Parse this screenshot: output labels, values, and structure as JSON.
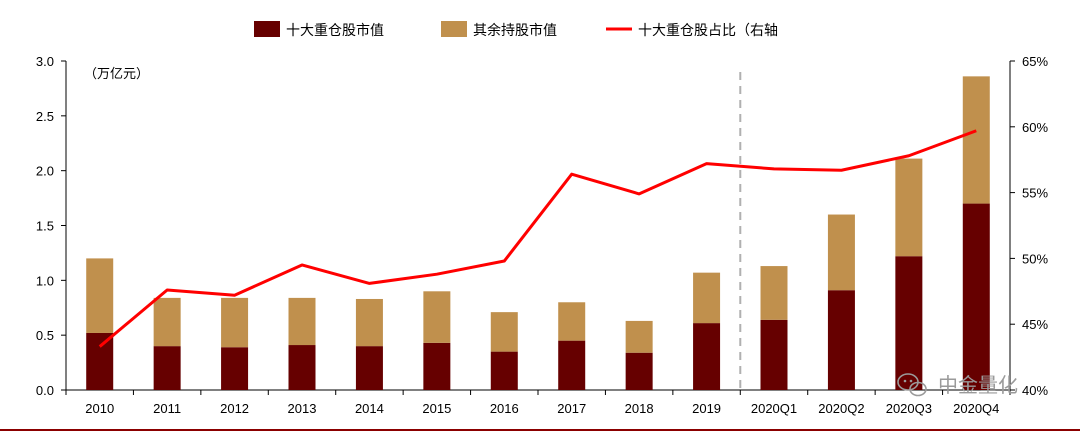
{
  "chart_data": {
    "type": "bar",
    "stacked": true,
    "categories": [
      "2010",
      "2011",
      "2012",
      "2013",
      "2014",
      "2015",
      "2016",
      "2017",
      "2018",
      "2019",
      "2020Q1",
      "2020Q2",
      "2020Q3",
      "2020Q4"
    ],
    "series": [
      {
        "name": "十大重仓股市值",
        "axis": "left",
        "kind": "bar",
        "color": "#660000",
        "values": [
          0.52,
          0.4,
          0.39,
          0.41,
          0.4,
          0.43,
          0.35,
          0.45,
          0.34,
          0.61,
          0.64,
          0.91,
          1.22,
          1.7
        ]
      },
      {
        "name": "其余持股市值",
        "axis": "left",
        "kind": "bar",
        "color": "#C0904D",
        "values": [
          0.68,
          0.44,
          0.45,
          0.43,
          0.43,
          0.47,
          0.36,
          0.35,
          0.29,
          0.46,
          0.49,
          0.69,
          0.89,
          1.16
        ]
      },
      {
        "name": "十大重仓股占比（右轴",
        "axis": "right",
        "kind": "line",
        "color": "#FF0000",
        "values": [
          43.3,
          47.6,
          47.2,
          49.5,
          48.1,
          48.8,
          49.8,
          56.4,
          54.9,
          57.2,
          56.8,
          56.7,
          57.8,
          59.7
        ]
      }
    ],
    "left_axis": {
      "unit_label": "（万亿元）",
      "ylim": [
        0,
        3.0
      ],
      "ticks": [
        "0.0",
        "0.5",
        "1.0",
        "1.5",
        "2.0",
        "2.5",
        "3.0"
      ]
    },
    "right_axis": {
      "ylim": [
        40,
        65
      ],
      "ticks": [
        "40%",
        "45%",
        "50%",
        "55%",
        "60%",
        "65%"
      ]
    },
    "divider_after": "2019",
    "divider_style": "dashed",
    "legend_position": "top-center"
  },
  "watermark": "中金量化",
  "colors": {
    "top10": "#660000",
    "others": "#C0904D",
    "line": "#FF0000",
    "divider": "#B0B0B0",
    "bottom_rule": "#8B0000"
  }
}
